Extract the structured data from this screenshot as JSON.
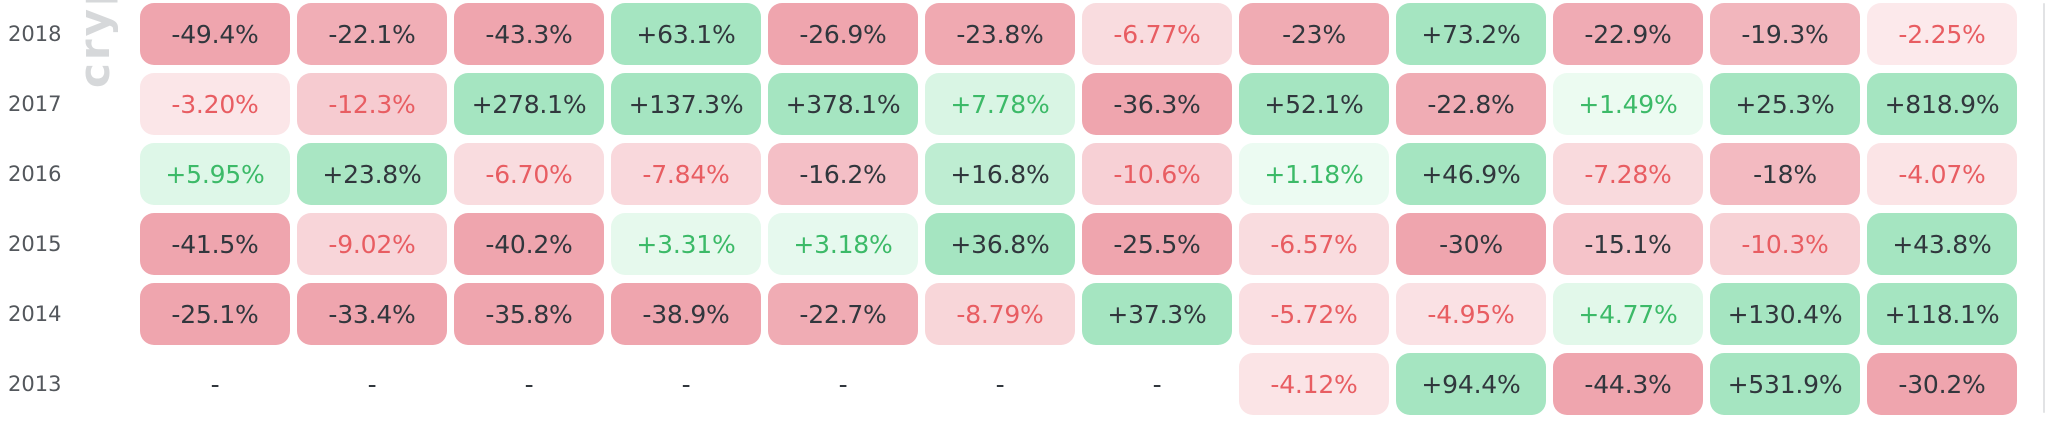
{
  "watermark": "cryp",
  "colors": {
    "negative_strong_bg": "#EFA5AE",
    "negative_light_bg": "#FDF0F1",
    "positive_strong_bg": "#A5E5C1",
    "positive_light_bg": "#F0FCF4",
    "negative_text": "#E85D62",
    "positive_text": "#3CBA68",
    "dark_text": "#31373D",
    "year_label_text": "#53575C",
    "watermark_text": "#D6D8DA",
    "divider": "#E2E3E5"
  },
  "scale": {
    "bg_saturation_cap_pct": 25,
    "colored_text_below_abs_pct": 13
  },
  "table": {
    "rows": [
      {
        "year": "2018",
        "cells": [
          "-49.4%",
          "-22.1%",
          "-43.3%",
          "+63.1%",
          "-26.9%",
          "-23.8%",
          "-6.77%",
          "-23%",
          "+73.2%",
          "-22.9%",
          "-19.3%",
          "-2.25%"
        ]
      },
      {
        "year": "2017",
        "cells": [
          "-3.20%",
          "-12.3%",
          "+278.1%",
          "+137.3%",
          "+378.1%",
          "+7.78%",
          "-36.3%",
          "+52.1%",
          "-22.8%",
          "+1.49%",
          "+25.3%",
          "+818.9%"
        ]
      },
      {
        "year": "2016",
        "cells": [
          "+5.95%",
          "+23.8%",
          "-6.70%",
          "-7.84%",
          "-16.2%",
          "+16.8%",
          "-10.6%",
          "+1.18%",
          "+46.9%",
          "-7.28%",
          "-18%",
          "-4.07%"
        ]
      },
      {
        "year": "2015",
        "cells": [
          "-41.5%",
          "-9.02%",
          "-40.2%",
          "+3.31%",
          "+3.18%",
          "+36.8%",
          "-25.5%",
          "-6.57%",
          "-30%",
          "-15.1%",
          "-10.3%",
          "+43.8%"
        ]
      },
      {
        "year": "2014",
        "cells": [
          "-25.1%",
          "-33.4%",
          "-35.8%",
          "-38.9%",
          "-22.7%",
          "-8.79%",
          "+37.3%",
          "-5.72%",
          "-4.95%",
          "+4.77%",
          "+130.4%",
          "+118.1%"
        ]
      },
      {
        "year": "2013",
        "cells": [
          "-",
          "-",
          "-",
          "-",
          "-",
          "-",
          "-",
          "-4.12%",
          "+94.4%",
          "-44.3%",
          "+531.9%",
          "-30.2%"
        ]
      }
    ]
  },
  "chart_data": {
    "type": "heatmap",
    "rows": [
      "2018",
      "2017",
      "2016",
      "2015",
      "2014",
      "2013"
    ],
    "num_columns": 12,
    "unit": "%",
    "series": [
      {
        "name": "2018",
        "values": [
          -49.4,
          -22.1,
          -43.3,
          63.1,
          -26.9,
          -23.8,
          -6.77,
          -23,
          73.2,
          -22.9,
          -19.3,
          -2.25
        ]
      },
      {
        "name": "2017",
        "values": [
          -3.2,
          -12.3,
          278.1,
          137.3,
          378.1,
          7.78,
          -36.3,
          52.1,
          -22.8,
          1.49,
          25.3,
          818.9
        ]
      },
      {
        "name": "2016",
        "values": [
          5.95,
          23.8,
          -6.7,
          -7.84,
          -16.2,
          16.8,
          -10.6,
          1.18,
          46.9,
          -7.28,
          -18,
          -4.07
        ]
      },
      {
        "name": "2015",
        "values": [
          -41.5,
          -9.02,
          -40.2,
          3.31,
          3.18,
          36.8,
          -25.5,
          -6.57,
          -30,
          -15.1,
          -10.3,
          43.8
        ]
      },
      {
        "name": "2014",
        "values": [
          -25.1,
          -33.4,
          -35.8,
          -38.9,
          -22.7,
          -8.79,
          37.3,
          -5.72,
          -4.95,
          4.77,
          130.4,
          118.1
        ]
      },
      {
        "name": "2013",
        "values": [
          null,
          null,
          null,
          null,
          null,
          null,
          null,
          -4.12,
          94.4,
          -44.3,
          531.9,
          -30.2
        ]
      }
    ],
    "legend": "none",
    "grid": "off",
    "color_rule": "green=positive, red=negative; background saturation scales with |value| up to 25%; |value|<13 uses pale background with colored text, otherwise saturated background with dark text"
  }
}
